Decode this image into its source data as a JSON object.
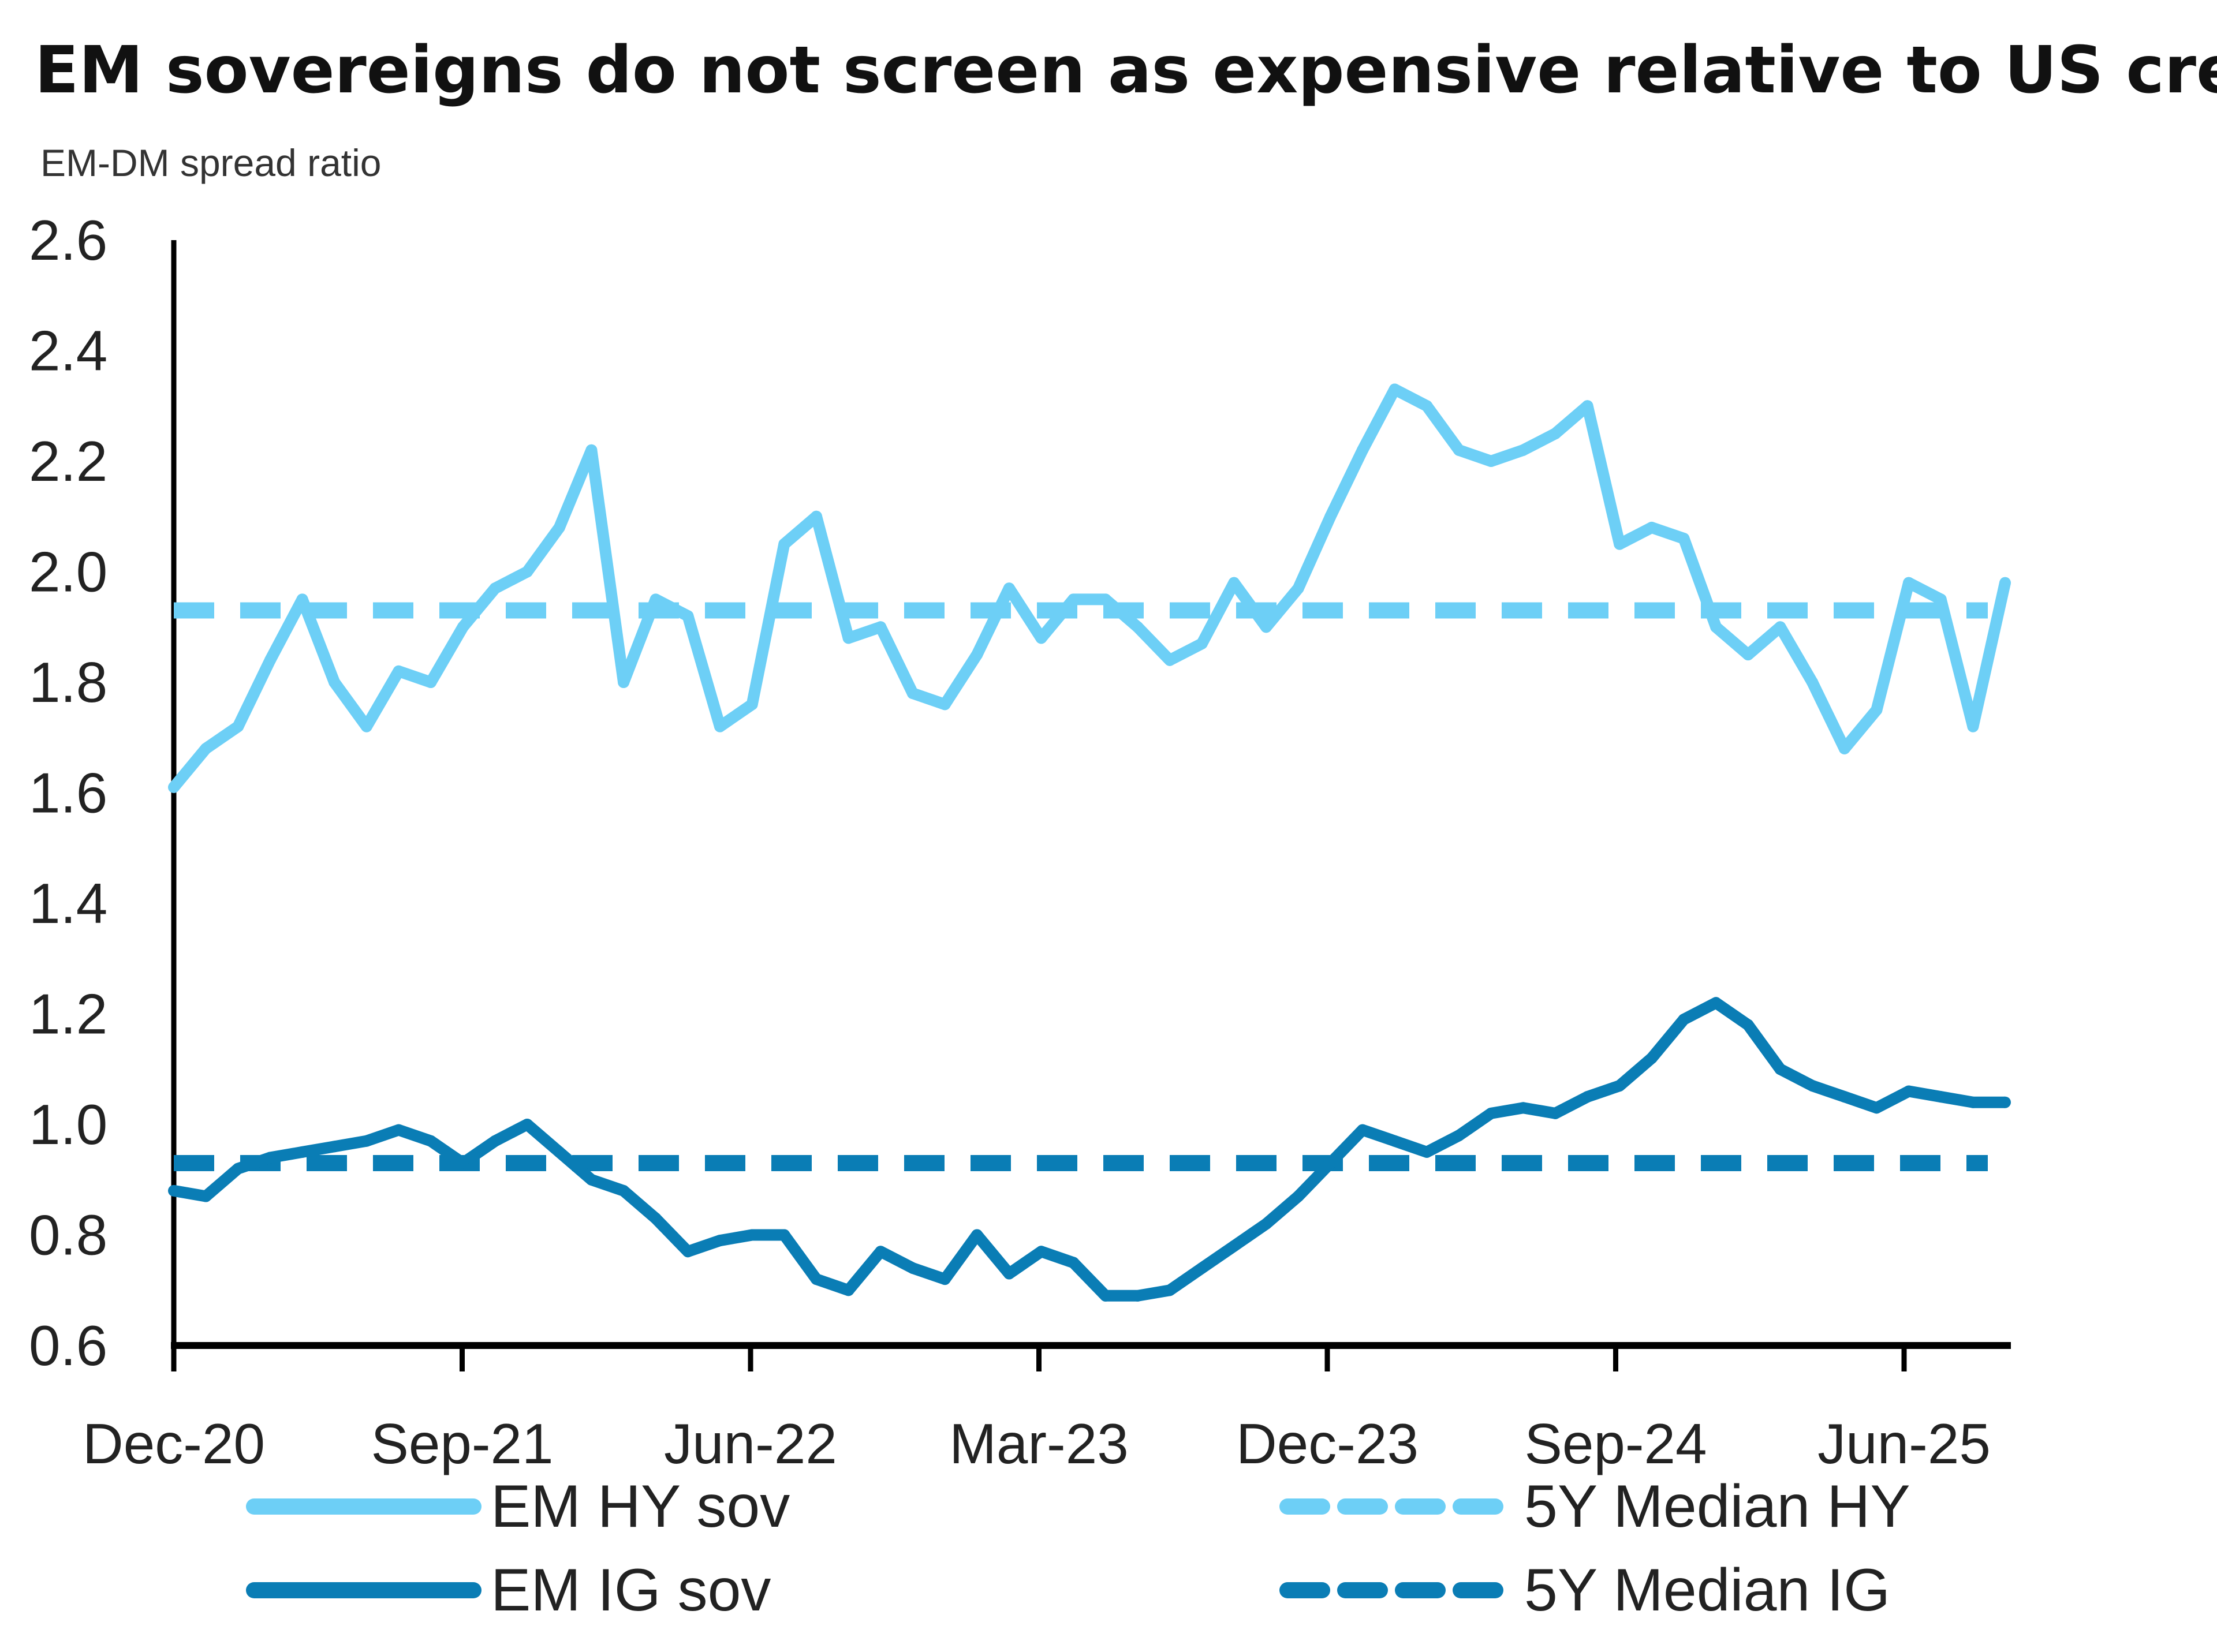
{
  "chart_data": {
    "type": "line",
    "title": "EM sovereigns do not screen as expensive relative to US credit",
    "ylabel": "EM-DM spread ratio",
    "xlabel": "",
    "ylim": [
      0.6,
      2.6
    ],
    "yticks": [
      "0.6",
      "0.8",
      "1.0",
      "1.2",
      "1.4",
      "1.6",
      "1.8",
      "2.0",
      "2.2",
      "2.4",
      "2.6"
    ],
    "xticks": [
      "Dec-20",
      "Sep-21",
      "Jun-22",
      "Mar-23",
      "Dec-23",
      "Sep-24",
      "Jun-25"
    ],
    "grid": false,
    "legend_position": "bottom",
    "x": [
      "Dec-20",
      "Jan-21",
      "Feb-21",
      "Mar-21",
      "Apr-21",
      "May-21",
      "Jun-21",
      "Jul-21",
      "Aug-21",
      "Sep-21",
      "Oct-21",
      "Nov-21",
      "Dec-21",
      "Jan-22",
      "Feb-22",
      "Mar-22",
      "Apr-22",
      "May-22",
      "Jun-22",
      "Jul-22",
      "Aug-22",
      "Sep-22",
      "Oct-22",
      "Nov-22",
      "Dec-22",
      "Jan-23",
      "Feb-23",
      "Mar-23",
      "Apr-23",
      "May-23",
      "Jun-23",
      "Jul-23",
      "Aug-23",
      "Sep-23",
      "Oct-23",
      "Nov-23",
      "Dec-23",
      "Jan-24",
      "Feb-24",
      "Mar-24",
      "Apr-24",
      "May-24",
      "Jun-24",
      "Jul-24",
      "Aug-24",
      "Sep-24",
      "Oct-24",
      "Nov-24",
      "Dec-24",
      "Jan-25",
      "Feb-25",
      "Mar-25",
      "Apr-25",
      "May-25",
      "Jun-25",
      "Jul-25",
      "Aug-25",
      "Sep-25"
    ],
    "series": [
      {
        "name": "EM HY sov",
        "color": "#6dcff6",
        "style": "solid",
        "values": [
          1.61,
          1.68,
          1.72,
          1.84,
          1.95,
          1.8,
          1.72,
          1.82,
          1.8,
          1.9,
          1.97,
          2.0,
          2.08,
          2.22,
          1.8,
          1.95,
          1.92,
          1.72,
          1.76,
          2.05,
          2.1,
          1.88,
          1.9,
          1.78,
          1.76,
          1.85,
          1.97,
          1.88,
          1.95,
          1.95,
          1.9,
          1.84,
          1.87,
          1.98,
          1.9,
          1.97,
          2.1,
          2.22,
          2.33,
          2.3,
          2.22,
          2.2,
          2.22,
          2.25,
          2.3,
          2.05,
          2.08,
          2.06,
          1.9,
          1.85,
          1.9,
          1.8,
          1.68,
          1.75,
          1.98,
          1.95,
          1.72,
          1.98
        ]
      },
      {
        "name": "EM IG sov",
        "color": "#0a7db5",
        "style": "solid",
        "values": [
          0.88,
          0.87,
          0.92,
          0.94,
          0.95,
          0.96,
          0.97,
          0.99,
          0.97,
          0.93,
          0.97,
          1.0,
          0.95,
          0.9,
          0.88,
          0.83,
          0.77,
          0.79,
          0.8,
          0.8,
          0.72,
          0.7,
          0.77,
          0.74,
          0.72,
          0.8,
          0.73,
          0.77,
          0.75,
          0.69,
          0.69,
          0.7,
          0.74,
          0.78,
          0.82,
          0.87,
          0.93,
          0.99,
          0.97,
          0.95,
          0.98,
          1.02,
          1.03,
          1.02,
          1.05,
          1.07,
          1.12,
          1.19,
          1.22,
          1.18,
          1.1,
          1.07,
          1.05,
          1.03,
          1.06,
          1.05,
          1.04,
          1.04
        ]
      },
      {
        "name": "5Y Median HY",
        "color": "#6dcff6",
        "style": "dashed",
        "value": 1.93
      },
      {
        "name": "5Y Median IG",
        "color": "#0a7db5",
        "style": "dashed",
        "value": 0.93
      }
    ]
  }
}
